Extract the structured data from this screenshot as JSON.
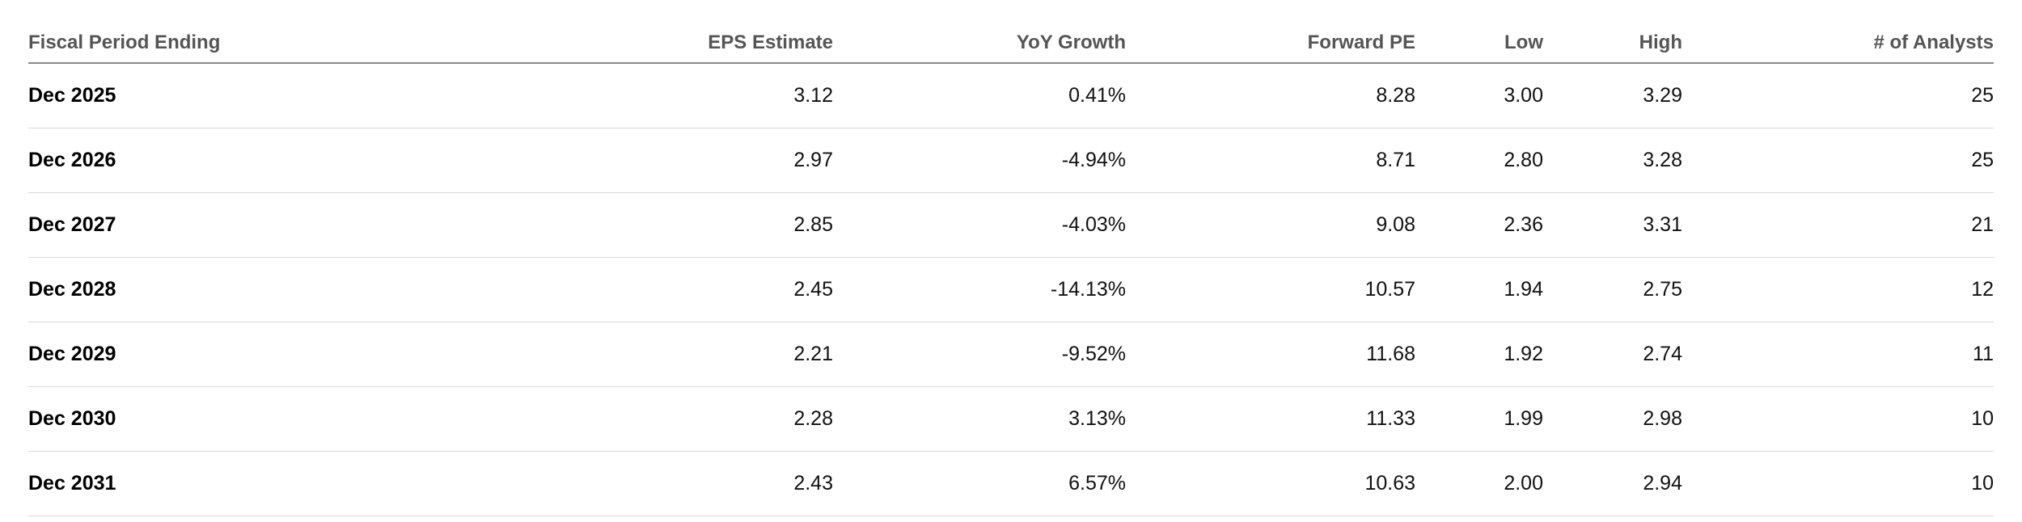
{
  "table": {
    "columns": [
      "Fiscal Period Ending",
      "EPS Estimate",
      "YoY Growth",
      "Forward PE",
      "Low",
      "High",
      "# of Analysts"
    ],
    "rows": [
      [
        "Dec 2025",
        "3.12",
        "0.41%",
        "8.28",
        "3.00",
        "3.29",
        "25"
      ],
      [
        "Dec 2026",
        "2.97",
        "-4.94%",
        "8.71",
        "2.80",
        "3.28",
        "25"
      ],
      [
        "Dec 2027",
        "2.85",
        "-4.03%",
        "9.08",
        "2.36",
        "3.31",
        "21"
      ],
      [
        "Dec 2028",
        "2.45",
        "-14.13%",
        "10.57",
        "1.94",
        "2.75",
        "12"
      ],
      [
        "Dec 2029",
        "2.21",
        "-9.52%",
        "11.68",
        "1.92",
        "2.74",
        "11"
      ],
      [
        "Dec 2030",
        "2.28",
        "3.13%",
        "11.33",
        "1.99",
        "2.98",
        "10"
      ],
      [
        "Dec 2031",
        "2.43",
        "6.57%",
        "10.63",
        "2.00",
        "2.94",
        "10"
      ]
    ]
  }
}
